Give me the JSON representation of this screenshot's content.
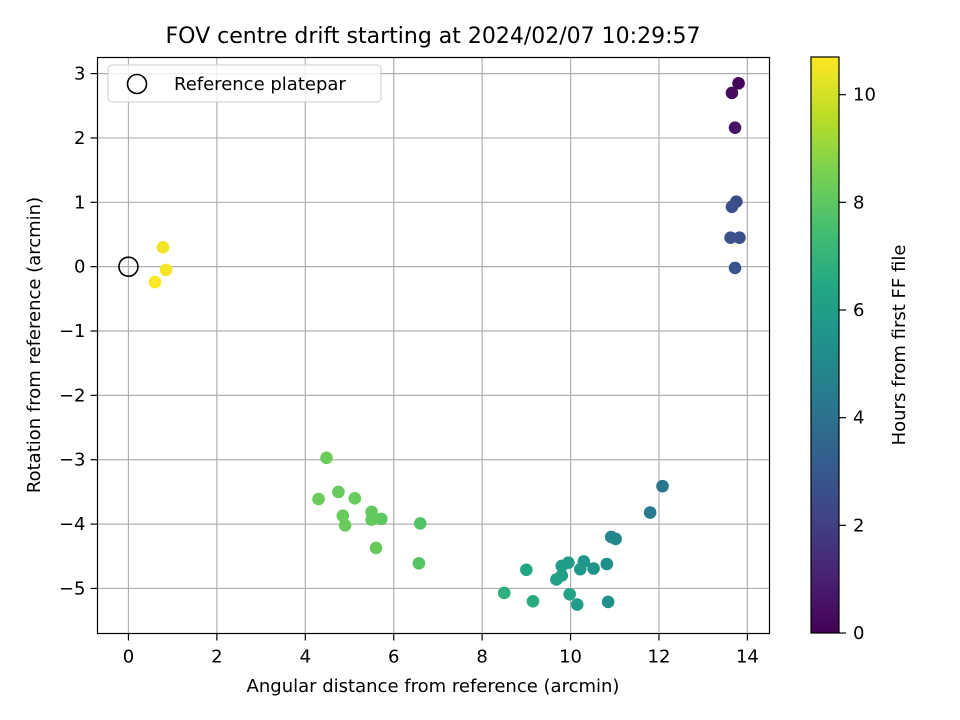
{
  "chart_data": {
    "type": "scatter",
    "title": "FOV centre drift starting at 2024/02/07 10:29:57",
    "xlabel": "Angular distance from reference (arcmin)",
    "ylabel": "Rotation from reference (arcmin)",
    "xlim": [
      -0.7,
      14.5
    ],
    "ylim": [
      -5.7,
      3.25
    ],
    "xticks": [
      0,
      2,
      4,
      6,
      8,
      10,
      12,
      14
    ],
    "yticks": [
      -5,
      -4,
      -3,
      -2,
      -1,
      0,
      1,
      2,
      3
    ],
    "xtick_labels": [
      "0",
      "2",
      "4",
      "6",
      "8",
      "10",
      "12",
      "14"
    ],
    "ytick_labels": [
      "−5",
      "−4",
      "−3",
      "−2",
      "−1",
      "0",
      "1",
      "2",
      "3"
    ],
    "grid": true,
    "legend": {
      "label": "Reference platepar",
      "position": "top-left",
      "marker": "open-circle"
    },
    "reference_point": {
      "x": 0,
      "y": 0
    },
    "colorbar": {
      "label": "Hours from first FF file",
      "colormap": "viridis",
      "range": [
        0,
        10.7
      ],
      "ticks": [
        0,
        2,
        4,
        6,
        8,
        10
      ],
      "tick_labels": [
        "0",
        "2",
        "4",
        "6",
        "8",
        "10"
      ]
    },
    "series": [
      {
        "points": [
          {
            "x": 13.8,
            "y": 2.85,
            "hours": 0.1
          },
          {
            "x": 13.65,
            "y": 2.7,
            "hours": 0.3
          },
          {
            "x": 13.72,
            "y": 2.16,
            "hours": 0.6
          },
          {
            "x": 13.75,
            "y": 1.01,
            "hours": 2.5
          },
          {
            "x": 13.65,
            "y": 0.93,
            "hours": 2.6
          },
          {
            "x": 13.62,
            "y": 0.45,
            "hours": 2.7
          },
          {
            "x": 13.82,
            "y": 0.45,
            "hours": 2.7
          },
          {
            "x": 13.72,
            "y": -0.02,
            "hours": 2.8
          },
          {
            "x": 12.08,
            "y": -3.41,
            "hours": 4.2
          },
          {
            "x": 11.8,
            "y": -3.82,
            "hours": 4.4
          },
          {
            "x": 10.92,
            "y": -4.2,
            "hours": 4.8
          },
          {
            "x": 11.02,
            "y": -4.23,
            "hours": 4.9
          },
          {
            "x": 10.82,
            "y": -4.62,
            "hours": 5.3
          },
          {
            "x": 10.3,
            "y": -4.58,
            "hours": 5.6
          },
          {
            "x": 10.52,
            "y": -4.69,
            "hours": 5.5
          },
          {
            "x": 10.22,
            "y": -4.7,
            "hours": 5.7
          },
          {
            "x": 9.95,
            "y": -4.6,
            "hours": 5.8
          },
          {
            "x": 9.8,
            "y": -4.65,
            "hours": 5.9
          },
          {
            "x": 9.8,
            "y": -4.8,
            "hours": 6.0
          },
          {
            "x": 9.68,
            "y": -4.86,
            "hours": 6.1
          },
          {
            "x": 10.85,
            "y": -5.21,
            "hours": 5.4
          },
          {
            "x": 10.15,
            "y": -5.25,
            "hours": 5.9
          },
          {
            "x": 9.98,
            "y": -5.09,
            "hours": 6.2
          },
          {
            "x": 9.15,
            "y": -5.2,
            "hours": 6.6
          },
          {
            "x": 9.0,
            "y": -4.71,
            "hours": 6.4
          },
          {
            "x": 8.5,
            "y": -5.07,
            "hours": 6.8
          },
          {
            "x": 6.6,
            "y": -3.99,
            "hours": 7.8
          },
          {
            "x": 6.57,
            "y": -4.61,
            "hours": 7.9
          },
          {
            "x": 5.72,
            "y": -3.92,
            "hours": 8.0
          },
          {
            "x": 5.6,
            "y": -4.37,
            "hours": 8.2
          },
          {
            "x": 5.5,
            "y": -3.81,
            "hours": 8.1
          },
          {
            "x": 5.5,
            "y": -3.93,
            "hours": 8.1
          },
          {
            "x": 5.12,
            "y": -3.6,
            "hours": 8.2
          },
          {
            "x": 4.85,
            "y": -3.87,
            "hours": 8.2
          },
          {
            "x": 4.9,
            "y": -4.02,
            "hours": 8.3
          },
          {
            "x": 4.75,
            "y": -3.5,
            "hours": 8.2
          },
          {
            "x": 4.3,
            "y": -3.61,
            "hours": 8.3
          },
          {
            "x": 4.48,
            "y": -2.97,
            "hours": 8.3
          },
          {
            "x": 0.78,
            "y": 0.3,
            "hours": 10.5
          },
          {
            "x": 0.85,
            "y": -0.05,
            "hours": 10.6
          },
          {
            "x": 0.6,
            "y": -0.24,
            "hours": 10.7
          }
        ]
      }
    ]
  }
}
